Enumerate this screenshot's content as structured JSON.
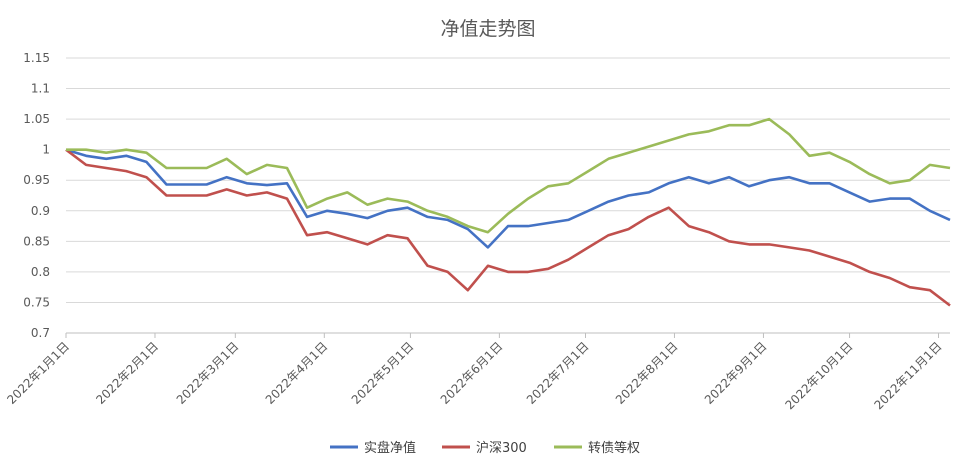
{
  "chart_data": {
    "type": "line",
    "title": "净值走势图",
    "xlabel": "",
    "ylabel": "",
    "ylim": [
      0.7,
      1.15
    ],
    "yticks": [
      "0.7",
      "0.75",
      "0.8",
      "0.85",
      "0.9",
      "0.95",
      "1",
      "1.05",
      "1.1",
      "1.15"
    ],
    "grid": true,
    "legend": "bottom",
    "x_ticks": [
      {
        "date": "2022-01-01",
        "label": "2022年1月1日"
      },
      {
        "date": "2022-02-01",
        "label": "2022年2月1日"
      },
      {
        "date": "2022-03-01",
        "label": "2022年3月1日"
      },
      {
        "date": "2022-04-01",
        "label": "2022年4月1日"
      },
      {
        "date": "2022-05-01",
        "label": "2022年5月1日"
      },
      {
        "date": "2022-06-01",
        "label": "2022年6月1日"
      },
      {
        "date": "2022-07-01",
        "label": "2022年7月1日"
      },
      {
        "date": "2022-08-01",
        "label": "2022年8月1日"
      },
      {
        "date": "2022-09-01",
        "label": "2022年9月1日"
      },
      {
        "date": "2022-10-01",
        "label": "2022年10月1日"
      },
      {
        "date": "2022-11-01",
        "label": "2022年11月1日"
      }
    ],
    "x": [
      "2022-01-01",
      "2022-01-08",
      "2022-01-15",
      "2022-01-22",
      "2022-01-29",
      "2022-02-05",
      "2022-02-12",
      "2022-02-19",
      "2022-02-26",
      "2022-03-05",
      "2022-03-12",
      "2022-03-19",
      "2022-03-26",
      "2022-04-02",
      "2022-04-09",
      "2022-04-16",
      "2022-04-23",
      "2022-04-30",
      "2022-05-07",
      "2022-05-14",
      "2022-05-21",
      "2022-05-28",
      "2022-06-04",
      "2022-06-11",
      "2022-06-18",
      "2022-06-25",
      "2022-07-02",
      "2022-07-09",
      "2022-07-16",
      "2022-07-23",
      "2022-07-30",
      "2022-08-06",
      "2022-08-13",
      "2022-08-20",
      "2022-08-27",
      "2022-09-03",
      "2022-09-10",
      "2022-09-17",
      "2022-09-24",
      "2022-10-01",
      "2022-10-08",
      "2022-10-15",
      "2022-10-22",
      "2022-10-29",
      "2022-11-05"
    ],
    "series": [
      {
        "name": "实盘净值",
        "color": "#4472c4",
        "values": [
          1.0,
          0.99,
          0.985,
          0.99,
          0.98,
          0.943,
          0.943,
          0.943,
          0.955,
          0.945,
          0.942,
          0.945,
          0.89,
          0.9,
          0.895,
          0.888,
          0.9,
          0.905,
          0.89,
          0.885,
          0.87,
          0.84,
          0.875,
          0.875,
          0.88,
          0.885,
          0.9,
          0.915,
          0.925,
          0.93,
          0.945,
          0.955,
          0.945,
          0.955,
          0.94,
          0.95,
          0.955,
          0.945,
          0.945,
          0.93,
          0.915,
          0.92,
          0.92,
          0.9,
          0.885
        ]
      },
      {
        "name": "沪深300",
        "color": "#c0504d",
        "values": [
          1.0,
          0.975,
          0.97,
          0.965,
          0.955,
          0.925,
          0.925,
          0.925,
          0.935,
          0.925,
          0.93,
          0.92,
          0.86,
          0.865,
          0.855,
          0.845,
          0.86,
          0.855,
          0.81,
          0.8,
          0.77,
          0.81,
          0.8,
          0.8,
          0.805,
          0.82,
          0.84,
          0.86,
          0.87,
          0.89,
          0.905,
          0.875,
          0.865,
          0.85,
          0.845,
          0.845,
          0.84,
          0.835,
          0.825,
          0.815,
          0.8,
          0.79,
          0.775,
          0.77,
          0.745
        ]
      },
      {
        "name": "转债等权",
        "color": "#9bbb59",
        "values": [
          1.0,
          1.0,
          0.995,
          1.0,
          0.995,
          0.97,
          0.97,
          0.97,
          0.985,
          0.96,
          0.975,
          0.97,
          0.905,
          0.92,
          0.93,
          0.91,
          0.92,
          0.915,
          0.9,
          0.89,
          0.875,
          0.865,
          0.895,
          0.92,
          0.94,
          0.945,
          0.965,
          0.985,
          0.995,
          1.005,
          1.015,
          1.025,
          1.03,
          1.04,
          1.04,
          1.05,
          1.025,
          0.99,
          0.995,
          0.98,
          0.96,
          0.945,
          0.95,
          0.975,
          0.97
        ]
      }
    ]
  }
}
